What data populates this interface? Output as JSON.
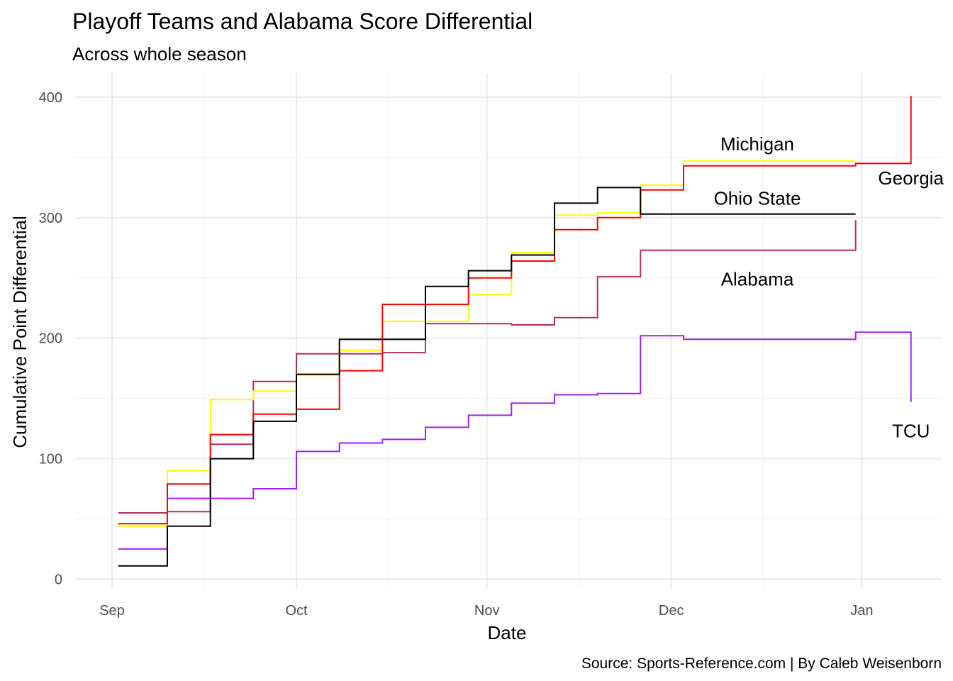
{
  "chart_data": {
    "type": "line",
    "step": true,
    "title": "Playoff Teams and Alabama Score Differential",
    "subtitle": "Across whole season",
    "xlabel": "Date",
    "ylabel": "Cumulative Point Differential",
    "caption": "Source: Sports-Reference.com | By Caleb Weisenborn",
    "xlim": [
      "2022-08-26",
      "2023-01-14"
    ],
    "ylim": [
      -8,
      420
    ],
    "x_ticks": [
      {
        "date": "2022-09-01",
        "label": "Sep"
      },
      {
        "date": "2022-10-01",
        "label": "Oct"
      },
      {
        "date": "2022-11-01",
        "label": "Nov"
      },
      {
        "date": "2022-12-01",
        "label": "Dec"
      },
      {
        "date": "2023-01-01",
        "label": "Jan"
      }
    ],
    "x_minor_ticks": [
      "2022-09-16",
      "2022-10-16",
      "2022-11-16",
      "2022-12-16"
    ],
    "y_ticks": [
      0,
      100,
      200,
      300,
      400
    ],
    "y_minor_ticks": [
      50,
      150,
      250,
      350
    ],
    "grid": true,
    "legend": "none",
    "series": [
      {
        "name": "TCU",
        "color": "#a020f0",
        "label": {
          "date": "2023-01-09",
          "y": 123
        },
        "points": [
          {
            "x": "2022-09-02",
            "y": 25
          },
          {
            "x": "2022-09-10",
            "y": 67
          },
          {
            "x": "2022-09-24",
            "y": 75
          },
          {
            "x": "2022-10-01",
            "y": 106
          },
          {
            "x": "2022-10-08",
            "y": 113
          },
          {
            "x": "2022-10-15",
            "y": 116
          },
          {
            "x": "2022-10-22",
            "y": 126
          },
          {
            "x": "2022-10-29",
            "y": 136
          },
          {
            "x": "2022-11-05",
            "y": 146
          },
          {
            "x": "2022-11-12",
            "y": 153
          },
          {
            "x": "2022-11-19",
            "y": 154
          },
          {
            "x": "2022-11-26",
            "y": 202
          },
          {
            "x": "2022-12-03",
            "y": 199
          },
          {
            "x": "2022-12-31",
            "y": 205
          },
          {
            "x": "2023-01-09",
            "y": 147
          }
        ]
      },
      {
        "name": "Alabama",
        "color": "#b03060",
        "label": {
          "date": "2022-12-15",
          "y": 249
        },
        "points": [
          {
            "x": "2022-09-02",
            "y": 55
          },
          {
            "x": "2022-09-10",
            "y": 56
          },
          {
            "x": "2022-09-17",
            "y": 112
          },
          {
            "x": "2022-09-24",
            "y": 164
          },
          {
            "x": "2022-10-01",
            "y": 187
          },
          {
            "x": "2022-10-15",
            "y": 188
          },
          {
            "x": "2022-10-22",
            "y": 212
          },
          {
            "x": "2022-11-05",
            "y": 211
          },
          {
            "x": "2022-11-12",
            "y": 217
          },
          {
            "x": "2022-11-19",
            "y": 251
          },
          {
            "x": "2022-11-26",
            "y": 273
          },
          {
            "x": "2022-12-31",
            "y": 298
          }
        ]
      },
      {
        "name": "Michigan",
        "color": "#ffff00",
        "label": {
          "date": "2022-12-15",
          "y": 361
        },
        "points": [
          {
            "x": "2022-09-02",
            "y": 44
          },
          {
            "x": "2022-09-10",
            "y": 90
          },
          {
            "x": "2022-09-17",
            "y": 149
          },
          {
            "x": "2022-09-24",
            "y": 156
          },
          {
            "x": "2022-10-01",
            "y": 169
          },
          {
            "x": "2022-10-08",
            "y": 190
          },
          {
            "x": "2022-10-15",
            "y": 214
          },
          {
            "x": "2022-10-29",
            "y": 236
          },
          {
            "x": "2022-11-05",
            "y": 271
          },
          {
            "x": "2022-11-12",
            "y": 302
          },
          {
            "x": "2022-11-19",
            "y": 304
          },
          {
            "x": "2022-11-26",
            "y": 327
          },
          {
            "x": "2022-12-03",
            "y": 347
          },
          {
            "x": "2022-12-31",
            "y": 347
          }
        ]
      },
      {
        "name": "Georgia",
        "color": "#ff0000",
        "label": {
          "date": "2023-01-09",
          "y": 333
        },
        "points": [
          {
            "x": "2022-09-02",
            "y": 46
          },
          {
            "x": "2022-09-10",
            "y": 79
          },
          {
            "x": "2022-09-17",
            "y": 120
          },
          {
            "x": "2022-09-24",
            "y": 137
          },
          {
            "x": "2022-10-01",
            "y": 141
          },
          {
            "x": "2022-10-08",
            "y": 173
          },
          {
            "x": "2022-10-15",
            "y": 228
          },
          {
            "x": "2022-10-29",
            "y": 250
          },
          {
            "x": "2022-11-05",
            "y": 264
          },
          {
            "x": "2022-11-12",
            "y": 290
          },
          {
            "x": "2022-11-19",
            "y": 300
          },
          {
            "x": "2022-11-26",
            "y": 323
          },
          {
            "x": "2022-12-03",
            "y": 343
          },
          {
            "x": "2022-12-31",
            "y": 345
          },
          {
            "x": "2023-01-09",
            "y": 401
          }
        ]
      },
      {
        "name": "Ohio State",
        "color": "#000000",
        "label": {
          "date": "2022-12-15",
          "y": 316
        },
        "points": [
          {
            "x": "2022-09-02",
            "y": 11
          },
          {
            "x": "2022-09-10",
            "y": 44
          },
          {
            "x": "2022-09-17",
            "y": 100
          },
          {
            "x": "2022-09-24",
            "y": 131
          },
          {
            "x": "2022-10-01",
            "y": 170
          },
          {
            "x": "2022-10-08",
            "y": 199
          },
          {
            "x": "2022-10-22",
            "y": 243
          },
          {
            "x": "2022-10-29",
            "y": 256
          },
          {
            "x": "2022-11-05",
            "y": 269
          },
          {
            "x": "2022-11-12",
            "y": 312
          },
          {
            "x": "2022-11-19",
            "y": 325
          },
          {
            "x": "2022-11-26",
            "y": 303
          },
          {
            "x": "2022-12-31",
            "y": 303
          }
        ]
      }
    ]
  }
}
